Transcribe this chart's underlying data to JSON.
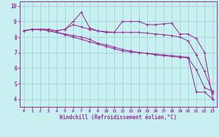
{
  "xlabel": "Windchill (Refroidissement éolien,°C)",
  "bg_color": "#c8f0f0",
  "line_color": "#993399",
  "grid_color": "#99cccc",
  "spine_color": "#993399",
  "ylim": [
    3.5,
    10.3
  ],
  "xlim": [
    -0.5,
    23.5
  ],
  "yticks": [
    4,
    5,
    6,
    7,
    8,
    9,
    10
  ],
  "xticks": [
    0,
    1,
    2,
    3,
    4,
    5,
    6,
    7,
    8,
    9,
    10,
    11,
    12,
    13,
    14,
    15,
    16,
    17,
    18,
    19,
    20,
    21,
    22,
    23
  ],
  "xtick_labels": [
    "0",
    "1",
    "2",
    "3",
    "4",
    "5",
    "6",
    "7",
    "8",
    "9",
    "10",
    "11",
    "12",
    "13",
    "14",
    "15",
    "16",
    "17",
    "18",
    "19",
    "20",
    "21",
    "22",
    "23"
  ],
  "lines": [
    [
      8.4,
      8.5,
      8.5,
      8.5,
      8.4,
      8.5,
      8.8,
      8.65,
      8.5,
      8.4,
      8.35,
      8.3,
      8.3,
      8.3,
      8.3,
      8.25,
      8.2,
      8.15,
      8.1,
      8.0,
      7.75,
      6.85,
      5.8,
      4.4
    ],
    [
      8.4,
      8.5,
      8.5,
      8.5,
      8.4,
      8.5,
      9.0,
      9.6,
      8.6,
      8.4,
      8.3,
      8.3,
      9.0,
      9.0,
      9.0,
      8.8,
      8.8,
      8.85,
      8.9,
      8.2,
      8.2,
      7.9,
      7.0,
      4.0
    ],
    [
      8.4,
      8.5,
      8.5,
      8.4,
      8.3,
      8.15,
      8.0,
      7.85,
      7.7,
      7.55,
      7.4,
      7.25,
      7.1,
      7.05,
      7.0,
      6.95,
      6.9,
      6.85,
      6.8,
      6.75,
      6.7,
      4.45,
      4.45,
      4.0
    ],
    [
      8.4,
      8.5,
      8.5,
      8.4,
      8.3,
      8.2,
      8.1,
      8.0,
      7.85,
      7.6,
      7.5,
      7.35,
      7.2,
      7.1,
      7.0,
      6.95,
      6.85,
      6.8,
      6.75,
      6.7,
      6.65,
      5.9,
      4.75,
      4.5
    ]
  ]
}
